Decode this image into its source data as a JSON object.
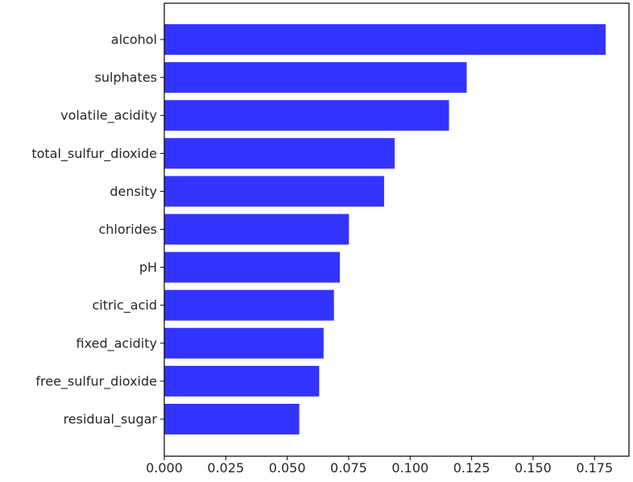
{
  "chart_data": {
    "type": "bar",
    "orientation": "horizontal",
    "title": "",
    "xlabel": "",
    "ylabel": "",
    "categories": [
      "alcohol",
      "sulphates",
      "volatile_acidity",
      "total_sulfur_dioxide",
      "density",
      "chlorides",
      "pH",
      "citric_acid",
      "fixed_acidity",
      "free_sulfur_dioxide",
      "residual_sugar"
    ],
    "values": [
      0.1795,
      0.123,
      0.1158,
      0.0937,
      0.0894,
      0.0751,
      0.0714,
      0.069,
      0.0648,
      0.063,
      0.0549
    ],
    "xlim": [
      0,
      0.189
    ],
    "xticks": [
      0.0,
      0.025,
      0.05,
      0.075,
      0.1,
      0.125,
      0.15,
      0.175
    ],
    "xtick_labels": [
      "0.000",
      "0.025",
      "0.050",
      "0.075",
      "0.100",
      "0.125",
      "0.150",
      "0.175"
    ],
    "bar_color": "#3333ff",
    "grid": false,
    "legend": "none"
  }
}
